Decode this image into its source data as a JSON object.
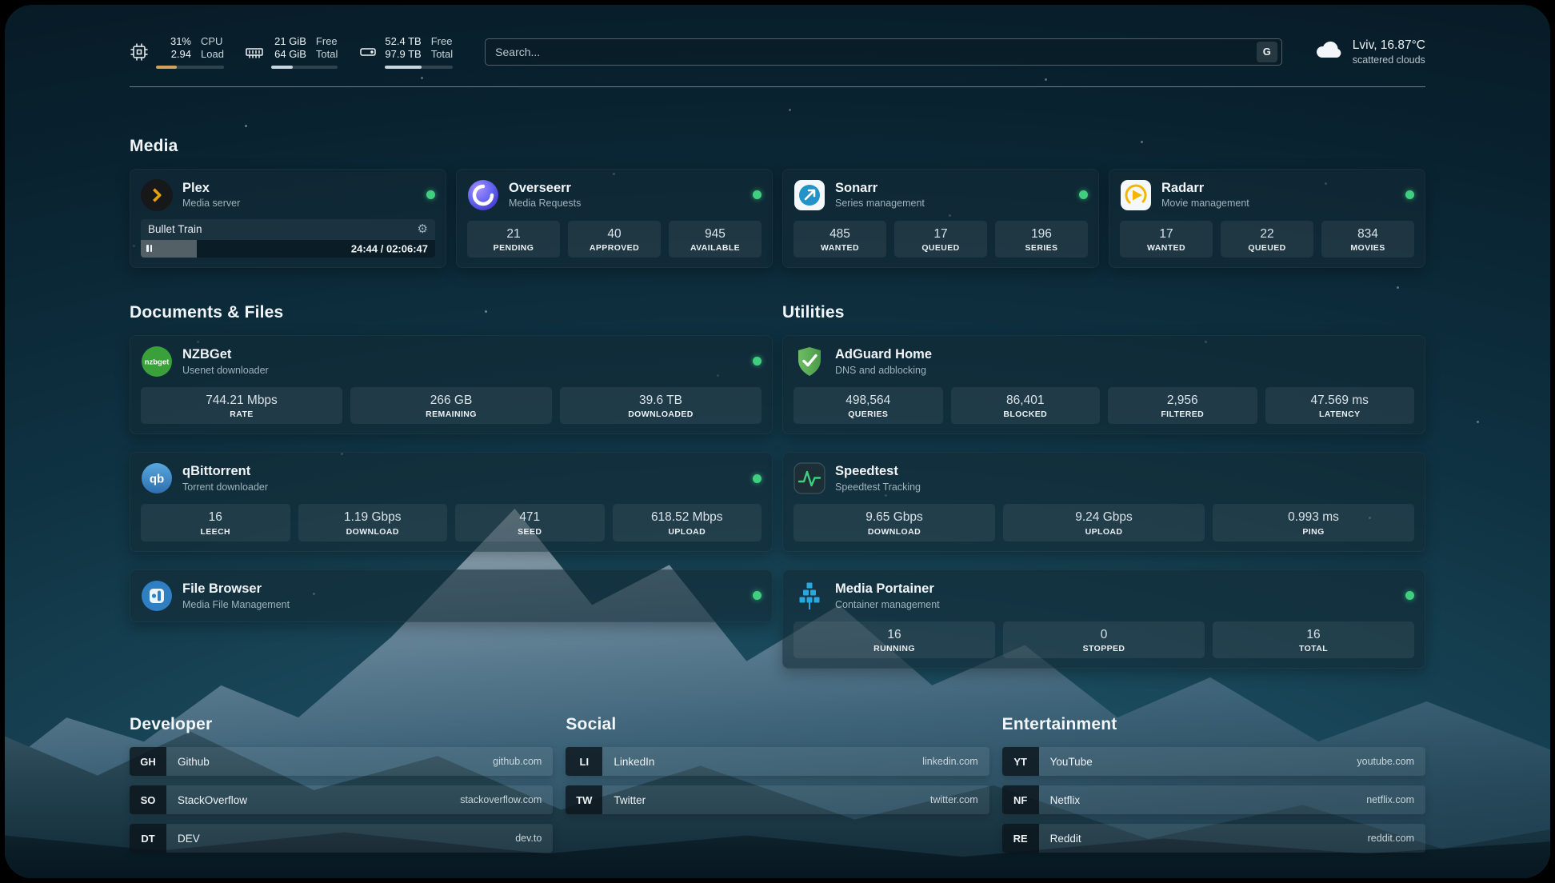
{
  "palette": {
    "status_online": "#3fd07f",
    "plex_accent": "#e5a00d",
    "cpu_bar_fill": "#cfa35f",
    "bar_fill": "#c9d6dd",
    "background_top": "#071b26",
    "background_glow": "#2a6273"
  },
  "header": {
    "cpu": {
      "value_top": "31%",
      "value_bottom": "2.94",
      "label_top": "CPU",
      "label_bottom": "Load",
      "progress_percent": 31
    },
    "memory": {
      "value_top": "21 GiB",
      "value_bottom": "64 GiB",
      "label_top": "Free",
      "label_bottom": "Total",
      "progress_percent": 33
    },
    "storage": {
      "value_top": "52.4 TB",
      "value_bottom": "97.9 TB",
      "label_top": "Free",
      "label_bottom": "Total",
      "progress_percent": 54
    },
    "search": {
      "placeholder": "Search...",
      "engine_button": "G"
    },
    "weather": {
      "location": "Lviv, 16.87°C",
      "condition": "scattered clouds"
    }
  },
  "icons": {
    "gear_glyph": "⚙",
    "qbittorrent_glyph": "qb",
    "nzbget_glyph": "nzbget"
  },
  "media": {
    "title": "Media",
    "plex": {
      "name": "Plex",
      "subtitle": "Media server",
      "now_playing": "Bullet Train",
      "time": "24:44 / 02:06:47",
      "progress_percent": 19
    },
    "overseerr": {
      "name": "Overseerr",
      "subtitle": "Media Requests",
      "stats": [
        {
          "value": "21",
          "label": "PENDING"
        },
        {
          "value": "40",
          "label": "APPROVED"
        },
        {
          "value": "945",
          "label": "AVAILABLE"
        }
      ]
    },
    "sonarr": {
      "name": "Sonarr",
      "subtitle": "Series management",
      "stats": [
        {
          "value": "485",
          "label": "WANTED"
        },
        {
          "value": "17",
          "label": "QUEUED"
        },
        {
          "value": "196",
          "label": "SERIES"
        }
      ]
    },
    "radarr": {
      "name": "Radarr",
      "subtitle": "Movie management",
      "stats": [
        {
          "value": "17",
          "label": "WANTED"
        },
        {
          "value": "22",
          "label": "QUEUED"
        },
        {
          "value": "834",
          "label": "MOVIES"
        }
      ]
    }
  },
  "documents": {
    "title": "Documents & Files",
    "nzbget": {
      "name": "NZBGet",
      "subtitle": "Usenet downloader",
      "stats": [
        {
          "value": "744.21 Mbps",
          "label": "RATE"
        },
        {
          "value": "266 GB",
          "label": "REMAINING"
        },
        {
          "value": "39.6 TB",
          "label": "DOWNLOADED"
        }
      ]
    },
    "qbittorrent": {
      "name": "qBittorrent",
      "subtitle": "Torrent downloader",
      "stats": [
        {
          "value": "16",
          "label": "LEECH"
        },
        {
          "value": "1.19 Gbps",
          "label": "DOWNLOAD"
        },
        {
          "value": "471",
          "label": "SEED"
        },
        {
          "value": "618.52 Mbps",
          "label": "UPLOAD"
        }
      ]
    },
    "filebrowser": {
      "name": "File Browser",
      "subtitle": "Media File Management"
    }
  },
  "utilities": {
    "title": "Utilities",
    "adguard": {
      "name": "AdGuard Home",
      "subtitle": "DNS and adblocking",
      "stats": [
        {
          "value": "498,564",
          "label": "QUERIES"
        },
        {
          "value": "86,401",
          "label": "BLOCKED"
        },
        {
          "value": "2,956",
          "label": "FILTERED"
        },
        {
          "value": "47.569 ms",
          "label": "LATENCY"
        }
      ]
    },
    "speedtest": {
      "name": "Speedtest",
      "subtitle": "Speedtest Tracking",
      "stats": [
        {
          "value": "9.65 Gbps",
          "label": "DOWNLOAD"
        },
        {
          "value": "9.24 Gbps",
          "label": "UPLOAD"
        },
        {
          "value": "0.993 ms",
          "label": "PING"
        }
      ]
    },
    "portainer": {
      "name": "Media Portainer",
      "subtitle": "Container management",
      "stats": [
        {
          "value": "16",
          "label": "RUNNING"
        },
        {
          "value": "0",
          "label": "STOPPED"
        },
        {
          "value": "16",
          "label": "TOTAL"
        }
      ]
    }
  },
  "bookmarks": {
    "developer": {
      "title": "Developer",
      "links": [
        {
          "abbr": "GH",
          "name": "Github",
          "url": "github.com"
        },
        {
          "abbr": "SO",
          "name": "StackOverflow",
          "url": "stackoverflow.com"
        },
        {
          "abbr": "DT",
          "name": "DEV",
          "url": "dev.to"
        }
      ]
    },
    "social": {
      "title": "Social",
      "links": [
        {
          "abbr": "LI",
          "name": "LinkedIn",
          "url": "linkedin.com"
        },
        {
          "abbr": "TW",
          "name": "Twitter",
          "url": "twitter.com"
        }
      ]
    },
    "entertainment": {
      "title": "Entertainment",
      "links": [
        {
          "abbr": "YT",
          "name": "YouTube",
          "url": "youtube.com"
        },
        {
          "abbr": "NF",
          "name": "Netflix",
          "url": "netflix.com"
        },
        {
          "abbr": "RE",
          "name": "Reddit",
          "url": "reddit.com"
        }
      ]
    }
  }
}
